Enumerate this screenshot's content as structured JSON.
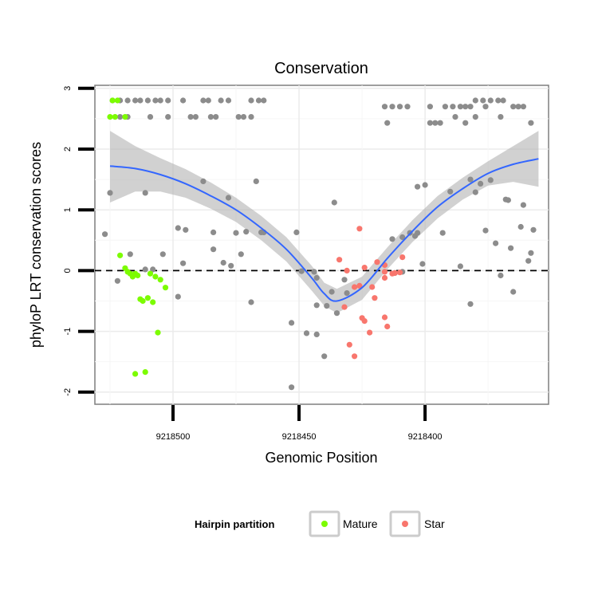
{
  "chart_data": {
    "type": "scatter",
    "title": "Conservation",
    "xlabel": "Genomic Position",
    "ylabel": "phyloP LRT conservation scores",
    "xlim": [
      9218531,
      9218351
    ],
    "ylim": [
      -2.2,
      3.05
    ],
    "x_reversed": true,
    "x_ticks": [
      9218500,
      9218450,
      9218400
    ],
    "x_tick_labels": [
      "9218500",
      "9218450",
      "9218400"
    ],
    "y_ticks": [
      -2,
      -1,
      0,
      1,
      2,
      3
    ],
    "y_tick_labels": [
      "-2",
      "-1",
      "0",
      "1",
      "2",
      "3"
    ],
    "reference_line": {
      "y": 0,
      "style": "dashed"
    },
    "legend": {
      "title": "Hairpin partition",
      "position": "bottom",
      "entries": [
        {
          "label": "Mature",
          "color": "#7cfc00"
        },
        {
          "label": "Star",
          "color": "#f8766d"
        }
      ]
    },
    "colors": {
      "other": "#8c8c8c",
      "mature": "#7cfc00",
      "star": "#f8766d",
      "smooth": "#3366ff",
      "band": "#b3b3b3",
      "grid": "#ebebeb"
    },
    "series": [
      {
        "name": "Other",
        "points": [
          [
            9218524,
            2.8
          ],
          [
            9218521,
            2.8
          ],
          [
            9218518,
            2.8
          ],
          [
            9218515,
            2.8
          ],
          [
            9218513,
            2.8
          ],
          [
            9218510,
            2.8
          ],
          [
            9218507,
            2.8
          ],
          [
            9218505,
            2.8
          ],
          [
            9218502,
            2.8
          ],
          [
            9218496,
            2.8
          ],
          [
            9218488,
            2.8
          ],
          [
            9218486,
            2.8
          ],
          [
            9218481,
            2.8
          ],
          [
            9218478,
            2.8
          ],
          [
            9218469,
            2.8
          ],
          [
            9218466,
            2.8
          ],
          [
            9218464,
            2.8
          ],
          [
            9218521,
            2.53
          ],
          [
            9218518,
            2.53
          ],
          [
            9218509,
            2.53
          ],
          [
            9218502,
            2.53
          ],
          [
            9218493,
            2.53
          ],
          [
            9218491,
            2.53
          ],
          [
            9218485,
            2.53
          ],
          [
            9218483,
            2.53
          ],
          [
            9218474,
            2.53
          ],
          [
            9218472,
            2.53
          ],
          [
            9218469,
            2.53
          ],
          [
            9218525,
            1.28
          ],
          [
            9218511,
            1.28
          ],
          [
            9218488,
            1.47
          ],
          [
            9218478,
            1.2
          ],
          [
            9218467,
            1.47
          ],
          [
            9218498,
            0.7
          ],
          [
            9218495,
            0.67
          ],
          [
            9218484,
            0.63
          ],
          [
            9218475,
            0.62
          ],
          [
            9218471,
            0.64
          ],
          [
            9218465,
            0.63
          ],
          [
            9218464,
            0.63
          ],
          [
            9218527,
            0.6
          ],
          [
            9218517,
            0.27
          ],
          [
            9218504,
            0.27
          ],
          [
            9218511,
            0.02
          ],
          [
            9218508,
            0.02
          ],
          [
            9218496,
            0.12
          ],
          [
            9218484,
            0.35
          ],
          [
            9218480,
            0.13
          ],
          [
            9218477,
            0.08
          ],
          [
            9218473,
            0.27
          ],
          [
            9218522,
            -0.17
          ],
          [
            9218498,
            -0.43
          ],
          [
            9218469,
            -0.52
          ],
          [
            9218451,
            0.63
          ],
          [
            9218453,
            -0.86
          ],
          [
            9218447,
            -1.03
          ],
          [
            9218443,
            -1.05
          ],
          [
            9218440,
            -1.41
          ],
          [
            9218443,
            -0.57
          ],
          [
            9218439,
            -0.58
          ],
          [
            9218435,
            -0.7
          ],
          [
            9218437,
            -0.35
          ],
          [
            9218432,
            -0.15
          ],
          [
            9218436,
            1.12
          ],
          [
            9218453,
            -1.92
          ],
          [
            9218444,
            -0.02
          ],
          [
            9218449,
            -0.01
          ],
          [
            9218443,
            -0.12
          ],
          [
            9218431,
            -0.37
          ],
          [
            9218416,
            2.7
          ],
          [
            9218413,
            2.7
          ],
          [
            9218410,
            2.7
          ],
          [
            9218407,
            2.7
          ],
          [
            9218398,
            2.7
          ],
          [
            9218392,
            2.7
          ],
          [
            9218389,
            2.7
          ],
          [
            9218386,
            2.7
          ],
          [
            9218384,
            2.7
          ],
          [
            9218382,
            2.7
          ],
          [
            9218376,
            2.7
          ],
          [
            9218365,
            2.7
          ],
          [
            9218363,
            2.7
          ],
          [
            9218361,
            2.7
          ],
          [
            9218415,
            2.43
          ],
          [
            9218398,
            2.43
          ],
          [
            9218396,
            2.43
          ],
          [
            9218394,
            2.43
          ],
          [
            9218384,
            2.43
          ],
          [
            9218380,
            2.8
          ],
          [
            9218377,
            2.8
          ],
          [
            9218374,
            2.8
          ],
          [
            9218371,
            2.8
          ],
          [
            9218369,
            2.8
          ],
          [
            9218358,
            2.43
          ],
          [
            9218388,
            2.53
          ],
          [
            9218380,
            2.53
          ],
          [
            9218370,
            2.53
          ],
          [
            9218403,
            1.38
          ],
          [
            9218400,
            1.41
          ],
          [
            9218390,
            1.3
          ],
          [
            9218382,
            1.5
          ],
          [
            9218378,
            1.43
          ],
          [
            9218380,
            1.29
          ],
          [
            9218374,
            1.49
          ],
          [
            9218368,
            1.17
          ],
          [
            9218367,
            1.16
          ],
          [
            9218361,
            1.08
          ],
          [
            9218413,
            0.52
          ],
          [
            9218409,
            0.55
          ],
          [
            9218406,
            0.62
          ],
          [
            9218403,
            0.62
          ],
          [
            9218404,
            0.57
          ],
          [
            9218393,
            0.62
          ],
          [
            9218376,
            0.66
          ],
          [
            9218362,
            0.72
          ],
          [
            9218357,
            0.67
          ],
          [
            9218358,
            0.29
          ],
          [
            9218359,
            0.16
          ],
          [
            9218401,
            0.11
          ],
          [
            9218372,
            0.45
          ],
          [
            9218366,
            0.37
          ],
          [
            9218412,
            -0.04
          ],
          [
            9218409,
            -0.02
          ],
          [
            9218386,
            0.07
          ],
          [
            9218370,
            -0.08
          ],
          [
            9218382,
            -0.55
          ],
          [
            9218365,
            -0.35
          ]
        ]
      },
      {
        "name": "Mature",
        "points": [
          [
            9218524,
            2.8
          ],
          [
            9218522,
            2.8
          ],
          [
            9218523,
            2.53
          ],
          [
            9218525,
            2.53
          ],
          [
            9218519,
            2.53
          ],
          [
            9218521,
            0.25
          ],
          [
            9218519,
            0.04
          ],
          [
            9218518,
            -0.02
          ],
          [
            9218517,
            -0.05
          ],
          [
            9218516,
            -0.1
          ],
          [
            9218515,
            -0.05
          ],
          [
            9218514,
            -0.08
          ],
          [
            9218513,
            -0.47
          ],
          [
            9218512,
            -0.5
          ],
          [
            9218510,
            -0.45
          ],
          [
            9218509,
            -0.05
          ],
          [
            9218507,
            -0.1
          ],
          [
            9218505,
            -0.15
          ],
          [
            9218503,
            -0.28
          ],
          [
            9218508,
            -0.52
          ],
          [
            9218506,
            -1.02
          ],
          [
            9218515,
            -1.7
          ],
          [
            9218511,
            -1.67
          ]
        ]
      },
      {
        "name": "Star",
        "points": [
          [
            9218434,
            0.18
          ],
          [
            9218431,
            0.0
          ],
          [
            9218428,
            -0.27
          ],
          [
            9218426,
            -0.25
          ],
          [
            9218424,
            0.05
          ],
          [
            9218426,
            0.69
          ],
          [
            9218419,
            0.14
          ],
          [
            9218416,
            0.09
          ],
          [
            9218416,
            -0.02
          ],
          [
            9218416,
            -0.12
          ],
          [
            9218413,
            -0.05
          ],
          [
            9218412,
            -0.04
          ],
          [
            9218410,
            -0.03
          ],
          [
            9218409,
            0.22
          ],
          [
            9218421,
            -0.27
          ],
          [
            9218420,
            -0.45
          ],
          [
            9218432,
            -0.6
          ],
          [
            9218425,
            -0.78
          ],
          [
            9218424,
            -0.83
          ],
          [
            9218422,
            -1.02
          ],
          [
            9218416,
            -0.77
          ],
          [
            9218415,
            -0.92
          ],
          [
            9218430,
            -1.22
          ],
          [
            9218428,
            -1.41
          ]
        ]
      }
    ],
    "smooth": {
      "x": [
        9218525,
        9218515,
        9218505,
        9218495,
        9218485,
        9218475,
        9218465,
        9218455,
        9218445,
        9218440,
        9218435,
        9218425,
        9218415,
        9218405,
        9218395,
        9218385,
        9218375,
        9218365,
        9218355
      ],
      "y": [
        1.72,
        1.68,
        1.58,
        1.43,
        1.23,
        1.0,
        0.7,
        0.35,
        -0.12,
        -0.38,
        -0.5,
        -0.28,
        0.2,
        0.65,
        1.05,
        1.35,
        1.6,
        1.75,
        1.84
      ],
      "upper": [
        2.3,
        2.05,
        1.85,
        1.67,
        1.45,
        1.2,
        0.9,
        0.55,
        0.08,
        -0.2,
        -0.3,
        -0.1,
        0.38,
        0.83,
        1.23,
        1.53,
        1.8,
        2.05,
        2.3
      ],
      "lower": [
        1.12,
        1.3,
        1.3,
        1.2,
        1.02,
        0.8,
        0.5,
        0.15,
        -0.33,
        -0.58,
        -0.7,
        -0.48,
        0.02,
        0.47,
        0.86,
        1.17,
        1.4,
        1.46,
        1.38
      ]
    }
  }
}
